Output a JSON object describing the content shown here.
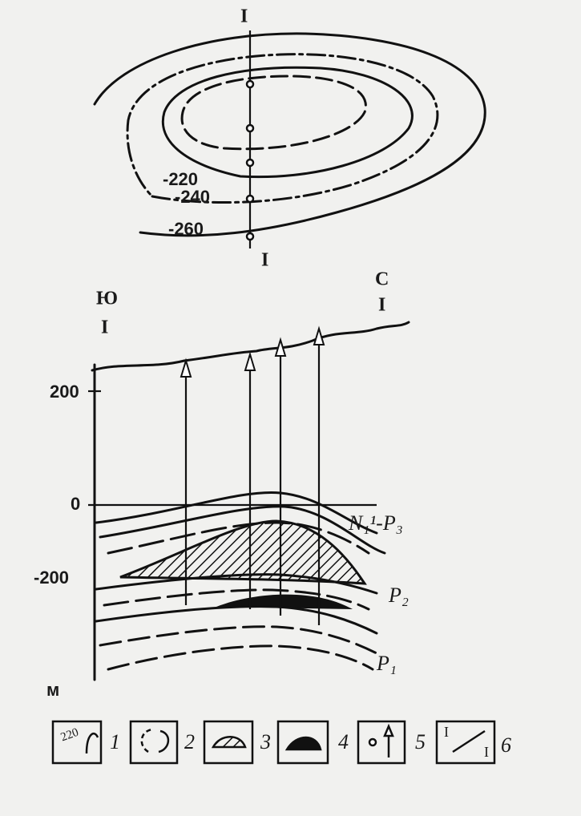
{
  "map": {
    "profile_top": "I",
    "profile_bottom": "I",
    "contours": [
      "-220",
      "-240",
      "-260"
    ]
  },
  "section": {
    "left_side": "Ю",
    "left_profile": "I",
    "right_side": "С",
    "right_profile": "I",
    "depth_labels": [
      "200",
      "0",
      "-200"
    ],
    "unit": "м",
    "strata": [
      "N₁¹-P₃",
      "P₂",
      "P₁"
    ]
  },
  "legend": {
    "contour_sample": "220",
    "profile_ends": [
      "I",
      "I"
    ],
    "numbers": [
      "1",
      "2",
      "3",
      "4",
      "5",
      "6"
    ]
  }
}
